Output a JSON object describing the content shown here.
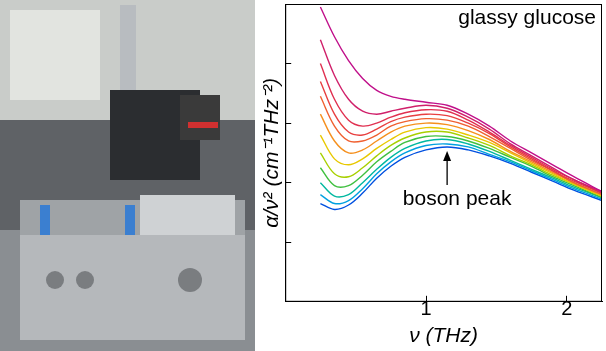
{
  "chart_data": {
    "type": "line",
    "x_label": "ν (THz)",
    "y_label": "α/ν² (cm⁻¹THz⁻²)",
    "annotations": [
      "glassy glucose",
      "boson peak"
    ],
    "x": [
      0.25,
      0.35,
      0.45,
      0.55,
      0.65,
      0.75,
      0.85,
      1.0,
      1.15,
      1.3,
      1.45,
      1.6,
      1.75,
      1.9,
      2.05,
      2.25
    ],
    "series": [
      {
        "color": "#c0108a",
        "values": [
          9.9,
          8.9,
          8.1,
          7.5,
          7.1,
          6.9,
          6.8,
          6.7,
          6.6,
          6.3,
          5.9,
          5.4,
          5.0,
          4.6,
          4.2,
          3.7
        ]
      },
      {
        "color": "#d0206a",
        "values": [
          8.8,
          7.6,
          6.8,
          6.4,
          6.3,
          6.4,
          6.5,
          6.6,
          6.5,
          6.2,
          5.8,
          5.3,
          4.9,
          4.5,
          4.1,
          3.7
        ]
      },
      {
        "color": "#e03050",
        "values": [
          8.0,
          6.8,
          6.1,
          5.9,
          6.0,
          6.2,
          6.35,
          6.45,
          6.4,
          6.1,
          5.7,
          5.25,
          4.85,
          4.45,
          4.1,
          3.65
        ]
      },
      {
        "color": "#e84040",
        "values": [
          7.4,
          6.3,
          5.7,
          5.6,
          5.8,
          6.05,
          6.2,
          6.3,
          6.25,
          6.0,
          5.65,
          5.2,
          4.8,
          4.4,
          4.05,
          3.65
        ]
      },
      {
        "color": "#f06030",
        "values": [
          6.9,
          5.9,
          5.4,
          5.4,
          5.6,
          5.9,
          6.05,
          6.15,
          6.1,
          5.9,
          5.55,
          5.15,
          4.75,
          4.4,
          4.0,
          3.6
        ]
      },
      {
        "color": "#f5901e",
        "values": [
          6.3,
          5.4,
          5.0,
          5.1,
          5.4,
          5.7,
          5.9,
          6.0,
          5.95,
          5.75,
          5.45,
          5.05,
          4.7,
          4.35,
          4.0,
          3.6
        ]
      },
      {
        "color": "#e8c800",
        "values": [
          5.6,
          4.8,
          4.6,
          4.8,
          5.15,
          5.45,
          5.7,
          5.85,
          5.8,
          5.6,
          5.35,
          5.0,
          4.65,
          4.3,
          3.95,
          3.55
        ]
      },
      {
        "color": "#a8d000",
        "values": [
          5.0,
          4.3,
          4.2,
          4.5,
          4.9,
          5.25,
          5.5,
          5.7,
          5.7,
          5.5,
          5.25,
          4.9,
          4.6,
          4.25,
          3.95,
          3.55
        ]
      },
      {
        "color": "#40c040",
        "values": [
          4.5,
          3.9,
          3.9,
          4.25,
          4.7,
          5.05,
          5.35,
          5.55,
          5.55,
          5.4,
          5.15,
          4.85,
          4.55,
          4.2,
          3.9,
          3.5
        ]
      },
      {
        "color": "#00b8a0",
        "values": [
          4.0,
          3.55,
          3.6,
          4.0,
          4.45,
          4.85,
          5.15,
          5.4,
          5.45,
          5.3,
          5.05,
          4.75,
          4.45,
          4.15,
          3.85,
          3.5
        ]
      },
      {
        "color": "#00a0e0",
        "values": [
          3.6,
          3.3,
          3.4,
          3.8,
          4.3,
          4.7,
          5.0,
          5.25,
          5.3,
          5.2,
          4.95,
          4.7,
          4.4,
          4.1,
          3.8,
          3.45
        ]
      },
      {
        "color": "#0050e0",
        "values": [
          3.3,
          3.1,
          3.25,
          3.65,
          4.15,
          4.55,
          4.85,
          5.1,
          5.2,
          5.1,
          4.9,
          4.65,
          4.35,
          4.05,
          3.75,
          3.4
        ]
      }
    ],
    "xlim": [
      0,
      2.25
    ],
    "xticks": [
      1,
      2
    ],
    "ylim": [
      0,
      10
    ],
    "yticks": [
      0,
      2,
      4,
      6,
      8,
      10
    ],
    "grid": false,
    "tick_labels": "x"
  }
}
